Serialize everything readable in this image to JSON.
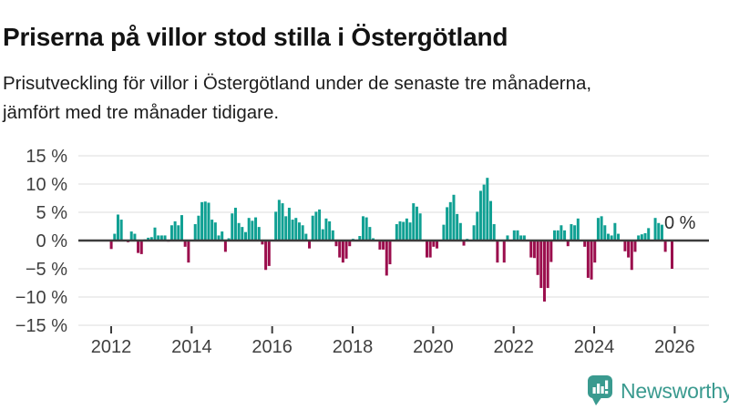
{
  "page": {
    "title": "Priserna på villor stod stilla i Östergötland",
    "subtitle_line1": "Prisutveckling för villor i Östergötland under de senaste tre månaderna,",
    "subtitle_line2": "jämfört med tre månader tidigare."
  },
  "chart_data": {
    "type": "bar",
    "title": "Priserna på villor stod stilla i Östergötland",
    "unit": "%",
    "frequency": "monthly",
    "start_month": "2012-01",
    "end_month": "2026-01",
    "ylim": [
      -15,
      15
    ],
    "grid": true,
    "ytick_values": [
      15,
      10,
      5,
      0,
      -5,
      -10,
      -15
    ],
    "ytick_labels": [
      "15 %",
      "10 %",
      "5 %",
      "0 %",
      "−5 %",
      "−10 %",
      "−15 %"
    ],
    "xticks": [
      2012,
      2014,
      2016,
      2018,
      2020,
      2022,
      2024,
      2026
    ],
    "values": [
      -1.5,
      1.2,
      4.6,
      3.7,
      0,
      -0.3,
      1.6,
      1.2,
      -2.2,
      -2.4,
      0.2,
      0.5,
      0.6,
      2.3,
      0.9,
      0.9,
      0.9,
      -0.2,
      2.7,
      3.4,
      2.7,
      4.5,
      -1.1,
      -3.9,
      0,
      2.9,
      4.4,
      6.8,
      6.9,
      6.7,
      3.7,
      3.2,
      0.9,
      1.6,
      -2.0,
      0.4,
      4.8,
      5.8,
      3.1,
      2.4,
      1.5,
      4.0,
      3.5,
      4.1,
      2.4,
      -0.7,
      -5.2,
      -4.5,
      0,
      5.1,
      7.2,
      6.6,
      4.3,
      5.8,
      3.7,
      4.0,
      3.2,
      2.7,
      1.2,
      -1.4,
      4.4,
      5.1,
      5.5,
      2.0,
      3.9,
      3.4,
      1.8,
      -1.0,
      -3.0,
      -3.9,
      -3.2,
      -1.0,
      0.3,
      0,
      0.8,
      4.3,
      4.1,
      2.4,
      0.4,
      0,
      -1.6,
      -1.6,
      -6.2,
      -4.2,
      0,
      2.9,
      3.4,
      3.3,
      3.9,
      3.2,
      6.6,
      6.0,
      4.8,
      0,
      -3.0,
      -3.0,
      -1.1,
      -1.4,
      0,
      2.8,
      5.9,
      6.8,
      8.1,
      4.7,
      3.1,
      -0.9,
      0.3,
      0,
      2.7,
      5.1,
      8.8,
      9.9,
      11.1,
      7.0,
      2.9,
      -3.9,
      0,
      -3.9,
      0.9,
      0,
      1.8,
      1.8,
      0.9,
      0.9,
      0,
      -3.0,
      -3.1,
      -6.1,
      -8.4,
      -10.8,
      -8.4,
      -3.8,
      1.8,
      1.8,
      2.7,
      1.8,
      -1.0,
      2.9,
      2.7,
      3.9,
      0,
      -1.1,
      -6.6,
      -6.9,
      -3.9,
      4.0,
      4.3,
      2.7,
      1.2,
      0.9,
      3.1,
      1.2,
      0,
      -1.9,
      -3.0,
      -5.2,
      -2.0,
      0.9,
      1.1,
      1.3,
      2.2,
      0,
      4.0,
      3.1,
      2.8,
      -2.0,
      0,
      -5.0,
      0
    ],
    "latest_value_pct": 0,
    "annotation": {
      "text": "0 %"
    },
    "colors": {
      "positive_bar": "#10a093",
      "negative_bar": "#9b0e4d",
      "gridline": "#e3e3e3",
      "zero_line": "#3c3c3c",
      "axis_text": "#3f3f3f"
    }
  },
  "logo": {
    "text": "Newsworthy",
    "icon": "newsworthy-speech-bubble-chart-icon",
    "color": "#3a9a8f"
  }
}
